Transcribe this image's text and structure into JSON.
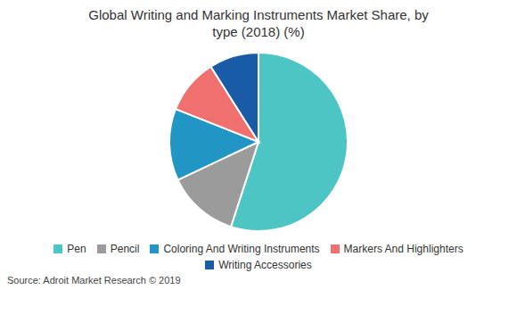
{
  "chart_data": {
    "type": "pie",
    "title": "Global Writing and Marking Instruments Market Share, by\ntype (2018) (%)",
    "categories": [
      "Pen",
      "Pencil",
      "Coloring And Writing Instruments",
      "Markers And Highlighters",
      "Writing Accessories"
    ],
    "values": [
      55,
      13,
      13,
      10,
      9
    ],
    "colors": [
      "#4DC5C5",
      "#9B9B9B",
      "#2196C4",
      "#F07070",
      "#1A5BA8"
    ],
    "legend": "bottom",
    "annotations": [
      "Source: Adroit Market Research © 2019"
    ]
  }
}
